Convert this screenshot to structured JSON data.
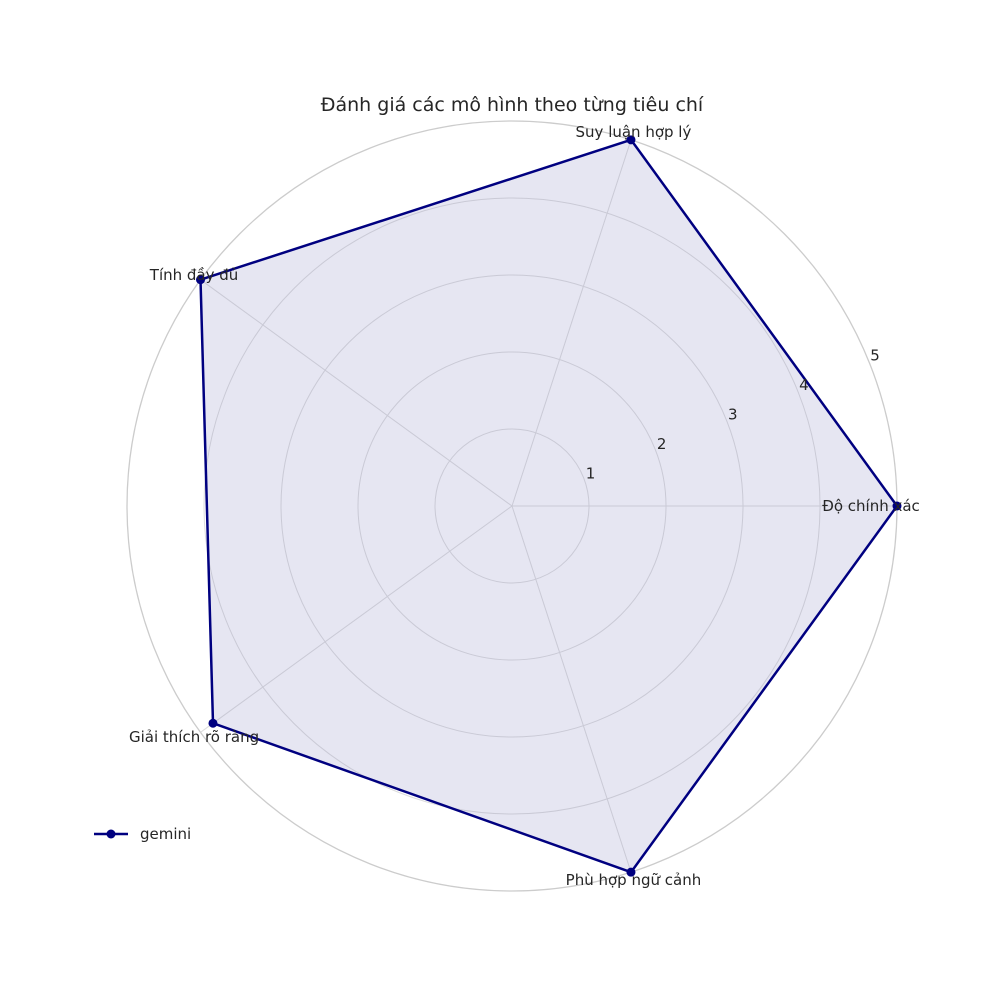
{
  "chart_data": {
    "type": "radar",
    "title": "Đánh giá các mô hình theo từng tiêu chí",
    "categories": [
      "Độ chính xác",
      "Suy luận hợp lý",
      "Tính đầy đủ",
      "Giải thích rõ ràng",
      "Phù hợp ngữ cảnh"
    ],
    "rlim": [
      0,
      5
    ],
    "rticks": [
      1,
      2,
      3,
      4,
      5
    ],
    "rtick_labels": [
      "1",
      "2",
      "3",
      "4",
      "5"
    ],
    "grid": true,
    "legend_position": "lower-left",
    "series": [
      {
        "name": "gemini",
        "values": [
          5,
          5,
          5,
          4.8,
          5
        ],
        "color": "#000080",
        "fill_color": "#8080c0"
      }
    ]
  }
}
